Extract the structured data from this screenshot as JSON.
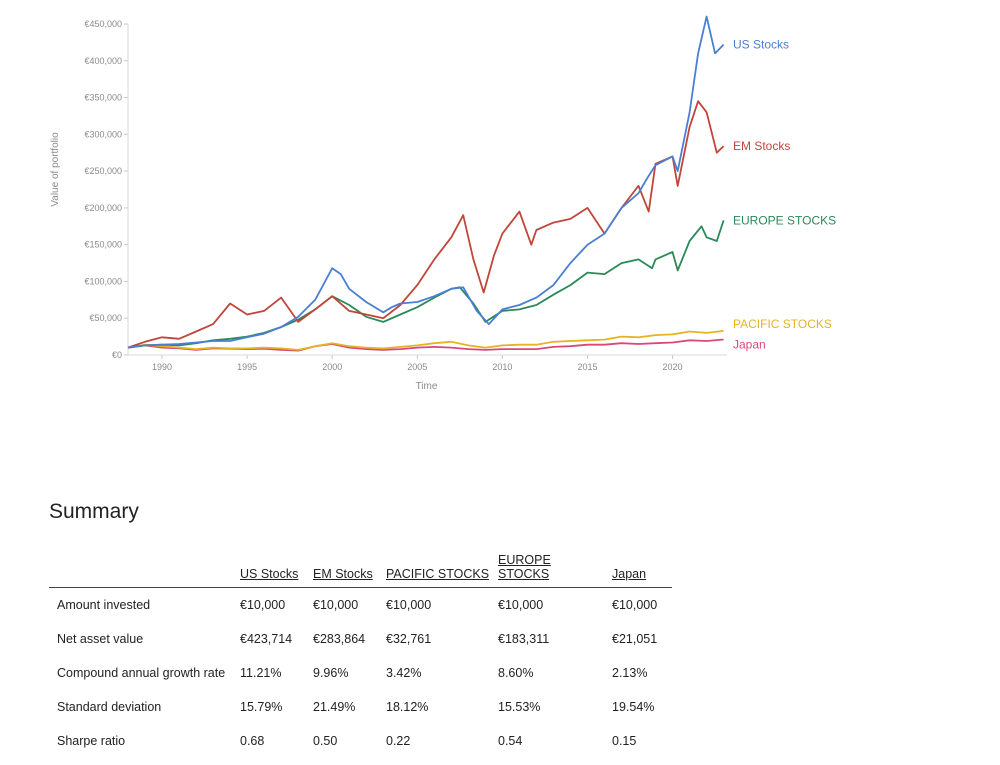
{
  "chart_data": {
    "type": "line",
    "ylabel": "Value of portfolio",
    "xlabel": "Time",
    "xlim": [
      1988.0,
      2023.2
    ],
    "ylim": [
      0,
      450000
    ],
    "x_ticks": [
      1990,
      1995,
      2000,
      2005,
      2010,
      2015,
      2020
    ],
    "y_ticks": [
      0,
      50000,
      100000,
      150000,
      200000,
      250000,
      300000,
      350000,
      400000,
      450000
    ],
    "y_tick_labels": [
      "€0",
      "€50,000",
      "€100,000",
      "€150,000",
      "€200,000",
      "€250,000",
      "€300,000",
      "€350,000",
      "€400,000",
      "€450,000"
    ],
    "x_tick_labels": [
      "1990",
      "1995",
      "2000",
      "2005",
      "2010",
      "2015",
      "2020"
    ],
    "series": [
      {
        "name": "US Stocks",
        "color": "#4a7fd4",
        "points": [
          [
            1988,
            10000
          ],
          [
            1989,
            13000
          ],
          [
            1990,
            14000
          ],
          [
            1991,
            15000
          ],
          [
            1992,
            17000
          ],
          [
            1993,
            19000
          ],
          [
            1994,
            19000
          ],
          [
            1995,
            24000
          ],
          [
            1996,
            29000
          ],
          [
            1997,
            38000
          ],
          [
            1998,
            52000
          ],
          [
            1999,
            75000
          ],
          [
            2000,
            118000
          ],
          [
            2000.5,
            110000
          ],
          [
            2001,
            90000
          ],
          [
            2002,
            72000
          ],
          [
            2003,
            58000
          ],
          [
            2003.5,
            65000
          ],
          [
            2004,
            70000
          ],
          [
            2005,
            72000
          ],
          [
            2006,
            80000
          ],
          [
            2007,
            90000
          ],
          [
            2007.7,
            92000
          ],
          [
            2008.5,
            60000
          ],
          [
            2009.2,
            42000
          ],
          [
            2010,
            62000
          ],
          [
            2011,
            68000
          ],
          [
            2012,
            78000
          ],
          [
            2013,
            95000
          ],
          [
            2014,
            125000
          ],
          [
            2015,
            150000
          ],
          [
            2016,
            165000
          ],
          [
            2017,
            200000
          ],
          [
            2018,
            220000
          ],
          [
            2018.5,
            240000
          ],
          [
            2019,
            258000
          ],
          [
            2020,
            270000
          ],
          [
            2020.3,
            250000
          ],
          [
            2021,
            330000
          ],
          [
            2021.5,
            410000
          ],
          [
            2022,
            460000
          ],
          [
            2022.5,
            410000
          ],
          [
            2023,
            422000
          ]
        ]
      },
      {
        "name": "EM Stocks",
        "color": "#c0463a",
        "points": [
          [
            1988,
            10000
          ],
          [
            1989,
            18000
          ],
          [
            1990,
            24000
          ],
          [
            1991,
            22000
          ],
          [
            1992,
            32000
          ],
          [
            1993,
            42000
          ],
          [
            1994,
            70000
          ],
          [
            1995,
            55000
          ],
          [
            1996,
            60000
          ],
          [
            1997,
            78000
          ],
          [
            1998,
            45000
          ],
          [
            1999,
            62000
          ],
          [
            2000,
            80000
          ],
          [
            2001,
            60000
          ],
          [
            2002,
            55000
          ],
          [
            2003,
            50000
          ],
          [
            2004,
            68000
          ],
          [
            2005,
            95000
          ],
          [
            2006,
            130000
          ],
          [
            2007,
            160000
          ],
          [
            2007.7,
            190000
          ],
          [
            2008.3,
            130000
          ],
          [
            2008.9,
            85000
          ],
          [
            2009.5,
            135000
          ],
          [
            2010,
            165000
          ],
          [
            2011,
            195000
          ],
          [
            2011.7,
            150000
          ],
          [
            2012,
            170000
          ],
          [
            2013,
            180000
          ],
          [
            2014,
            185000
          ],
          [
            2015,
            200000
          ],
          [
            2016,
            165000
          ],
          [
            2017,
            200000
          ],
          [
            2018,
            230000
          ],
          [
            2018.6,
            195000
          ],
          [
            2019,
            260000
          ],
          [
            2020,
            270000
          ],
          [
            2020.3,
            230000
          ],
          [
            2021,
            310000
          ],
          [
            2021.5,
            345000
          ],
          [
            2022,
            330000
          ],
          [
            2022.6,
            275000
          ],
          [
            2023,
            284000
          ]
        ]
      },
      {
        "name": "EUROPE STOCKS",
        "color": "#2a8a57",
        "points": [
          [
            1988,
            10000
          ],
          [
            1989,
            13000
          ],
          [
            1990,
            14000
          ],
          [
            1991,
            13000
          ],
          [
            1992,
            16000
          ],
          [
            1993,
            20000
          ],
          [
            1994,
            22000
          ],
          [
            1995,
            25000
          ],
          [
            1996,
            30000
          ],
          [
            1997,
            38000
          ],
          [
            1998,
            48000
          ],
          [
            1999,
            62000
          ],
          [
            2000,
            80000
          ],
          [
            2001,
            68000
          ],
          [
            2002,
            52000
          ],
          [
            2003,
            45000
          ],
          [
            2004,
            55000
          ],
          [
            2005,
            65000
          ],
          [
            2006,
            78000
          ],
          [
            2007,
            90000
          ],
          [
            2007.5,
            92000
          ],
          [
            2008.3,
            70000
          ],
          [
            2009,
            45000
          ],
          [
            2010,
            60000
          ],
          [
            2011,
            62000
          ],
          [
            2012,
            68000
          ],
          [
            2013,
            82000
          ],
          [
            2014,
            95000
          ],
          [
            2015,
            112000
          ],
          [
            2016,
            110000
          ],
          [
            2017,
            125000
          ],
          [
            2018,
            130000
          ],
          [
            2018.8,
            118000
          ],
          [
            2019,
            130000
          ],
          [
            2020,
            140000
          ],
          [
            2020.3,
            115000
          ],
          [
            2021,
            155000
          ],
          [
            2021.7,
            175000
          ],
          [
            2022,
            160000
          ],
          [
            2022.6,
            155000
          ],
          [
            2023,
            183000
          ]
        ]
      },
      {
        "name": "PACIFIC STOCKS",
        "color": "#e6b325",
        "points": [
          [
            1988,
            10000
          ],
          [
            1989,
            14000
          ],
          [
            1990,
            12000
          ],
          [
            1991,
            10000
          ],
          [
            1992,
            8000
          ],
          [
            1993,
            10000
          ],
          [
            1994,
            9000
          ],
          [
            1995,
            9000
          ],
          [
            1996,
            10000
          ],
          [
            1997,
            9000
          ],
          [
            1998,
            7000
          ],
          [
            1999,
            12000
          ],
          [
            2000,
            16000
          ],
          [
            2001,
            12000
          ],
          [
            2002,
            10000
          ],
          [
            2003,
            9000
          ],
          [
            2004,
            11000
          ],
          [
            2005,
            13000
          ],
          [
            2006,
            16000
          ],
          [
            2007,
            18000
          ],
          [
            2008,
            13000
          ],
          [
            2009,
            10000
          ],
          [
            2010,
            13000
          ],
          [
            2011,
            14000
          ],
          [
            2012,
            14000
          ],
          [
            2013,
            18000
          ],
          [
            2014,
            19000
          ],
          [
            2015,
            20000
          ],
          [
            2016,
            21000
          ],
          [
            2017,
            25000
          ],
          [
            2018,
            24000
          ],
          [
            2019,
            27000
          ],
          [
            2020,
            28000
          ],
          [
            2021,
            32000
          ],
          [
            2022,
            30000
          ],
          [
            2023,
            32761
          ]
        ]
      },
      {
        "name": "Japan",
        "color": "#d9487a",
        "points": [
          [
            1988,
            10000
          ],
          [
            1989,
            13000
          ],
          [
            1990,
            10000
          ],
          [
            1991,
            9000
          ],
          [
            1992,
            7000
          ],
          [
            1993,
            9000
          ],
          [
            1994,
            8500
          ],
          [
            1995,
            8000
          ],
          [
            1996,
            8500
          ],
          [
            1997,
            7000
          ],
          [
            1998,
            6000
          ],
          [
            1999,
            12000
          ],
          [
            2000,
            15000
          ],
          [
            2001,
            10000
          ],
          [
            2002,
            8000
          ],
          [
            2003,
            7000
          ],
          [
            2004,
            8000
          ],
          [
            2005,
            10000
          ],
          [
            2006,
            11000
          ],
          [
            2007,
            10000
          ],
          [
            2008,
            8000
          ],
          [
            2009,
            7000
          ],
          [
            2010,
            8000
          ],
          [
            2011,
            8000
          ],
          [
            2012,
            8000
          ],
          [
            2013,
            11000
          ],
          [
            2014,
            12000
          ],
          [
            2015,
            14000
          ],
          [
            2016,
            14000
          ],
          [
            2017,
            16000
          ],
          [
            2018,
            15000
          ],
          [
            2019,
            16000
          ],
          [
            2020,
            17000
          ],
          [
            2021,
            20000
          ],
          [
            2022,
            19000
          ],
          [
            2023,
            21051
          ]
        ]
      }
    ]
  },
  "summary": {
    "title": "Summary",
    "columns": [
      "US Stocks",
      "EM Stocks",
      "PACIFIC STOCKS",
      "EUROPE STOCKS",
      "Japan"
    ],
    "rows": [
      {
        "label": "Amount invested",
        "values": [
          "€10,000",
          "€10,000",
          "€10,000",
          "€10,000",
          "€10,000"
        ]
      },
      {
        "label": "Net asset value",
        "values": [
          "€423,714",
          "€283,864",
          "€32,761",
          "€183,311",
          "€21,051"
        ]
      },
      {
        "label": "Compound annual growth rate",
        "values": [
          "11.21%",
          "9.96%",
          "3.42%",
          "8.60%",
          "2.13%"
        ]
      },
      {
        "label": "Standard deviation",
        "values": [
          "15.79%",
          "21.49%",
          "18.12%",
          "15.53%",
          "19.54%"
        ]
      },
      {
        "label": "Sharpe ratio",
        "values": [
          "0.68",
          "0.50",
          "0.22",
          "0.54",
          "0.15"
        ]
      }
    ]
  }
}
